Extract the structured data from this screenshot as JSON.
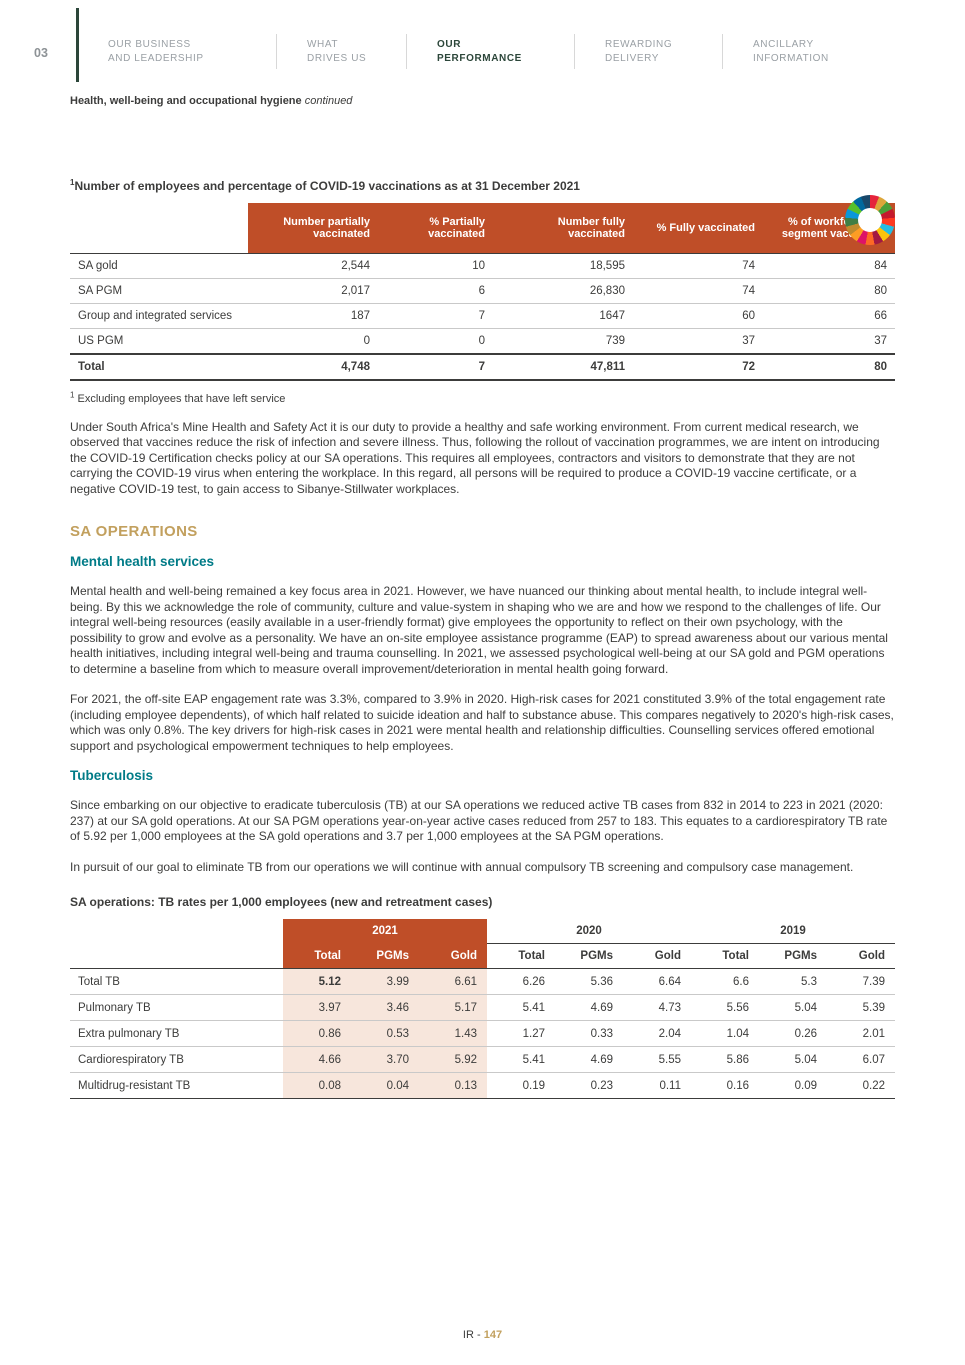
{
  "colors": {
    "orange": "#bf4e28",
    "peach": "#f7e6dc",
    "teal": "#007b87",
    "gold": "#c2a05e",
    "green": "#2c463a",
    "text": "#3c3c3b",
    "muted-nav": "#9aa0a5",
    "border-dark": "#3c3c3b",
    "border-light": "#c9c9c9"
  },
  "nav": {
    "section_number": "03",
    "items": [
      {
        "line1": "OUR BUSINESS",
        "line2": "AND LEADERSHIP",
        "active": false
      },
      {
        "line1": "WHAT",
        "line2": "DRIVES US",
        "active": false
      },
      {
        "line1": "OUR",
        "line2": "PERFORMANCE",
        "active": true
      },
      {
        "line1": "REWARDING",
        "line2": "DELIVERY",
        "active": false
      },
      {
        "line1": "ANCILLARY",
        "line2": "INFORMATION",
        "active": false
      }
    ]
  },
  "breadcrumb": {
    "title": "Health, well-being and occupational hygiene",
    "suffix": "continued"
  },
  "icons": {
    "sdg_wheel": "sdg-colour-wheel"
  },
  "vaccination_table": {
    "title_superscript": "1",
    "title": "Number of employees and percentage of COVID-19 vaccinations as at 31 December 2021",
    "columns": [
      "Number partially vaccinated",
      "% Partially vaccinated",
      "Number fully vaccinated",
      "% Fully vaccinated",
      "% of workforce per segment vaccinated"
    ],
    "rows": [
      {
        "label": "SA gold",
        "values": [
          "2,544",
          "10",
          "18,595",
          "74",
          "84"
        ]
      },
      {
        "label": "SA PGM",
        "values": [
          "2,017",
          "6",
          "26,830",
          "74",
          "80"
        ]
      },
      {
        "label": "Group and integrated services",
        "values": [
          "187",
          "7",
          "1647",
          "60",
          "66"
        ]
      },
      {
        "label": "US PGM",
        "values": [
          "0",
          "0",
          "739",
          "37",
          "37"
        ]
      }
    ],
    "total_row": {
      "label": "Total",
      "values": [
        "4,748",
        "7",
        "47,811",
        "72",
        "80"
      ]
    },
    "footnote_superscript": "1",
    "footnote": "Excluding employees that have left service"
  },
  "intro_paragraph": "Under South Africa's Mine Health and Safety Act it is our duty to provide a healthy and safe working environment. From current medical research, we observed that vaccines reduce the risk of infection and severe illness. Thus, following the rollout of vaccination programmes, we are intent on introducing the COVID-19 Certification checks policy at our SA operations. This requires all employees, contractors and visitors to demonstrate that they are not carrying the COVID-19 virus when entering the workplace. In this regard, all persons will be required to produce a COVID-19 vaccine certificate, or a negative COVID-19 test, to gain access to Sibanye-Stillwater workplaces.",
  "sa_operations": {
    "heading": "SA OPERATIONS",
    "mental_health": {
      "heading": "Mental health services",
      "paragraphs": [
        "Mental health and well-being remained a key focus area in 2021. However, we have nuanced our thinking about mental health, to include integral well-being. By this we acknowledge the role of community, culture and value-system in shaping who we are and how we respond to the challenges of life. Our integral well-being resources (easily available in a user-friendly format) give employees the opportunity to reflect on their own psychology, with the possibility to grow and evolve as a personality. We have an on-site employee assistance programme (EAP) to spread awareness about our various mental health initiatives, including integral well-being and trauma counselling. In 2021, we assessed psychological well-being at our SA gold and PGM operations to determine a baseline from which to measure overall improvement/deterioration in mental health going forward.",
        "For 2021, the off-site EAP engagement rate was 3.3%, compared to 3.9% in 2020. High-risk cases for 2021 constituted 3.9% of the total engagement rate (including employee dependents), of which half related to suicide ideation and half to substance abuse. This compares negatively to 2020's high-risk cases, which was only 0.8%. The key drivers for high-risk cases in 2021 were mental health and relationship difficulties. Counselling services offered emotional support and psychological empowerment techniques to help employees."
      ]
    },
    "tuberculosis": {
      "heading": "Tuberculosis",
      "paragraphs": [
        "Since embarking on our objective to eradicate tuberculosis (TB) at our SA operations we reduced active TB cases from 832 in 2014 to 223 in 2021 (2020: 237) at our SA gold operations. At our SA PGM operations year-on-year active cases reduced from 257 to 183. This equates to a cardiorespiratory TB rate of 5.92 per 1,000 employees at the SA gold operations and 3.7 per 1,000 employees at the SA PGM operations.",
        "In pursuit of our goal to eliminate TB from our operations we will continue with annual compulsory TB screening and compulsory case management."
      ]
    }
  },
  "tb_table": {
    "title": "SA operations: TB rates per 1,000 employees (new and retreatment cases)",
    "year_groups": [
      "2021",
      "2020",
      "2019"
    ],
    "sub_columns": [
      "Total",
      "PGMs",
      "Gold"
    ],
    "rows": [
      {
        "label": "Total TB",
        "values": [
          "5.12",
          "3.99",
          "6.61",
          "6.26",
          "5.36",
          "6.64",
          "6.6",
          "5.3",
          "7.39"
        ]
      },
      {
        "label": "Pulmonary TB",
        "values": [
          "3.97",
          "3.46",
          "5.17",
          "5.41",
          "4.69",
          "4.73",
          "5.56",
          "5.04",
          "5.39"
        ]
      },
      {
        "label": "Extra pulmonary TB",
        "values": [
          "0.86",
          "0.53",
          "1.43",
          "1.27",
          "0.33",
          "2.04",
          "1.04",
          "0.26",
          "2.01"
        ]
      },
      {
        "label": "Cardiorespiratory TB",
        "values": [
          "4.66",
          "3.70",
          "5.92",
          "5.41",
          "4.69",
          "5.55",
          "5.86",
          "5.04",
          "6.07"
        ]
      },
      {
        "label": "Multidrug-resistant TB",
        "values": [
          "0.08",
          "0.04",
          "0.13",
          "0.19",
          "0.23",
          "0.11",
          "0.16",
          "0.09",
          "0.22"
        ]
      }
    ]
  },
  "footer": {
    "prefix": "IR - ",
    "page_number": "147"
  }
}
